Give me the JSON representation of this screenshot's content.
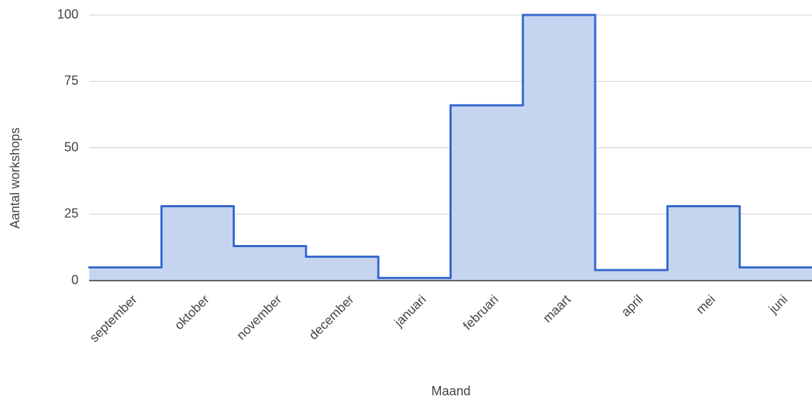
{
  "chart_data": {
    "type": "stepped-area",
    "x_label": "Maand",
    "y_label": "Aantal workshops",
    "categories": [
      "september",
      "oktober",
      "november",
      "december",
      "januari",
      "februari",
      "maart",
      "april",
      "mei",
      "juni"
    ],
    "values": [
      5,
      28,
      13,
      9,
      1,
      66,
      100,
      4,
      28,
      5
    ],
    "color": "#3366cc",
    "fill": "#c5d5f0",
    "ylim": [
      0,
      100
    ],
    "yticks": [
      0,
      25,
      50,
      75,
      100
    ],
    "grid": true
  }
}
